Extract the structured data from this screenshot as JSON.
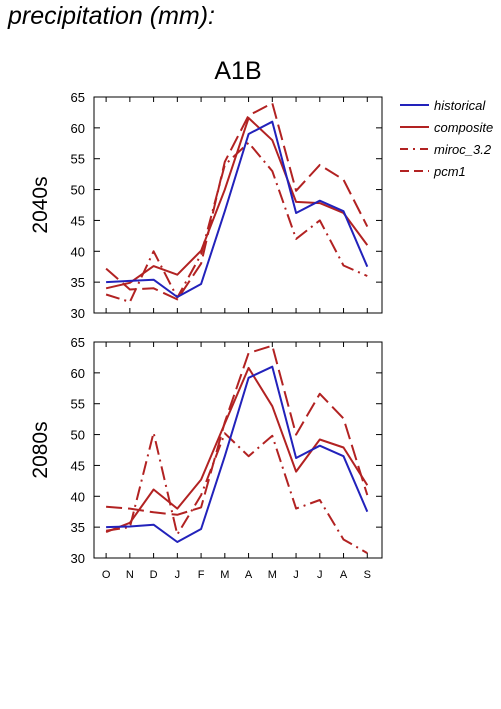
{
  "figure_title": "precipitation (mm):",
  "colors": {
    "historical": "#2222bb",
    "model": "#b22222"
  },
  "chart_data": [
    {
      "type": "line",
      "title": "A1B",
      "ylabel": "2040s",
      "ylim": [
        30,
        65
      ],
      "yticks": [
        30,
        35,
        40,
        45,
        50,
        55,
        60,
        65
      ],
      "categories": [
        "O",
        "N",
        "D",
        "J",
        "F",
        "M",
        "A",
        "M",
        "J",
        "J",
        "A",
        "S"
      ],
      "series": [
        {
          "name": "historical",
          "dash": "solid",
          "color": "#2222bb",
          "values": [
            35.0,
            35.2,
            35.4,
            32.6,
            34.7,
            46.5,
            59.0,
            61.0,
            46.2,
            48.2,
            46.5,
            37.5
          ]
        },
        {
          "name": "composite",
          "dash": "solid",
          "color": "#b22222",
          "values": [
            34.0,
            34.9,
            37.6,
            36.2,
            40.1,
            50.0,
            61.6,
            58.0,
            48.0,
            47.8,
            46.2,
            41.0
          ]
        },
        {
          "name": "miroc_3.2",
          "dash": "dashdot",
          "color": "#b22222",
          "values": [
            33.0,
            31.8,
            40.0,
            32.5,
            39.5,
            54.0,
            57.6,
            53.0,
            42.0,
            45.0,
            37.7,
            36.0
          ]
        },
        {
          "name": "pcm1",
          "dash": "dash",
          "color": "#b22222",
          "values": [
            37.2,
            33.8,
            34.0,
            32.2,
            38.0,
            54.5,
            62.0,
            64.0,
            49.8,
            54.0,
            51.6,
            44.0
          ]
        }
      ]
    },
    {
      "type": "line",
      "ylabel": "2080s",
      "ylim": [
        30,
        65
      ],
      "yticks": [
        30,
        35,
        40,
        45,
        50,
        55,
        60,
        65
      ],
      "categories": [
        "O",
        "N",
        "D",
        "J",
        "F",
        "M",
        "A",
        "M",
        "J",
        "J",
        "A",
        "S"
      ],
      "series": [
        {
          "name": "historical",
          "dash": "solid",
          "color": "#2222bb",
          "values": [
            35.0,
            35.1,
            35.4,
            32.6,
            34.7,
            46.5,
            59.2,
            61.0,
            46.2,
            48.2,
            46.5,
            37.5
          ]
        },
        {
          "name": "composite",
          "dash": "solid",
          "color": "#b22222",
          "values": [
            34.2,
            35.7,
            41.1,
            38.0,
            42.7,
            51.8,
            60.8,
            54.6,
            44.0,
            49.2,
            47.9,
            41.8
          ]
        },
        {
          "name": "miroc_3.2",
          "dash": "dashdot",
          "color": "#b22222",
          "values": [
            34.4,
            35.0,
            50.3,
            33.8,
            40.2,
            50.2,
            46.5,
            49.8,
            38.0,
            39.4,
            33.0,
            30.8
          ]
        },
        {
          "name": "pcm1",
          "dash": "dash",
          "color": "#b22222",
          "values": [
            38.3,
            38.0,
            37.4,
            37.0,
            38.2,
            52.0,
            63.2,
            64.4,
            50.0,
            56.6,
            52.6,
            40.2
          ]
        }
      ]
    }
  ]
}
